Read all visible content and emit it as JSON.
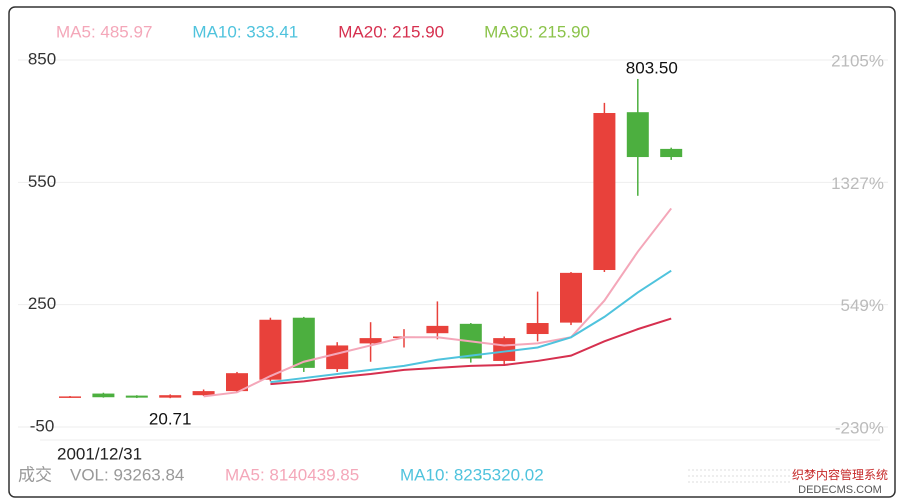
{
  "chart_data": {
    "type": "candlestick",
    "categories": [
      "2001/12/31",
      null,
      null,
      null,
      null,
      null,
      null,
      null,
      null,
      null,
      null,
      null,
      null,
      null,
      null,
      null,
      null,
      null,
      null
    ],
    "open": [
      22,
      32,
      27,
      22,
      28,
      38,
      66,
      218,
      92,
      155,
      170,
      180,
      203,
      112,
      178,
      206,
      335,
      722,
      632
    ],
    "high": [
      26,
      34,
      28,
      30,
      42,
      85,
      218,
      220,
      158,
      207,
      190,
      258,
      205,
      172,
      282,
      330,
      745,
      803.5,
      635
    ],
    "low": [
      21.5,
      22,
      21,
      20.71,
      26,
      35,
      62,
      85,
      85,
      110,
      145,
      165,
      108,
      100,
      160,
      200,
      330,
      517,
      605
    ],
    "close": [
      25,
      23,
      22,
      28,
      38,
      82,
      213,
      95,
      150,
      168,
      172,
      198,
      118,
      168,
      205,
      328,
      720,
      612,
      612
    ],
    "up_color": "#e8413b",
    "down_color": "#4caf3f",
    "series": [
      {
        "name": "MA5: 485.97",
        "color": "#f4a7b9",
        "values": [
          null,
          null,
          null,
          null,
          25,
          35,
          75,
          110,
          130,
          150,
          170,
          170,
          160,
          150,
          155,
          170,
          260,
          380,
          485.97
        ]
      },
      {
        "name": "MA10: 333.41",
        "color": "#4fc3dd",
        "values": [
          null,
          null,
          null,
          null,
          null,
          null,
          60,
          70,
          80,
          90,
          100,
          115,
          125,
          135,
          145,
          170,
          220,
          280,
          333.41
        ]
      },
      {
        "name": "MA20: 215.90",
        "color": "#d6304f",
        "values": [
          null,
          null,
          null,
          null,
          null,
          null,
          55,
          62,
          72,
          80,
          90,
          95,
          100,
          102,
          112,
          125,
          160,
          190,
          215.9
        ]
      }
    ],
    "extra_legend": [
      {
        "name": "MA30: 215.90",
        "color": "#8bc34a"
      }
    ],
    "annotations": [
      {
        "value": 803.5,
        "label": "803.50"
      },
      {
        "value": 20.71,
        "label": "20.71"
      }
    ],
    "ylim": [
      -50,
      850
    ],
    "yticks": [
      -50,
      250,
      550,
      850
    ],
    "y2lim": [
      -230,
      2105
    ],
    "y2ticks": [
      {
        "value": -230,
        "label": "-230%"
      },
      {
        "value": 549,
        "label": "549%"
      },
      {
        "value": 1327,
        "label": "1327%"
      },
      {
        "value": 2105,
        "label": "2105%"
      }
    ],
    "grid": true,
    "footer": {
      "label": "成交",
      "vol": "VOL: 93263.84",
      "ma5": "MA5: 8140439.85",
      "ma10": "MA10: 8235320.02"
    },
    "watermark": [
      "织梦内容管理系统",
      "DEDECMS.COM"
    ]
  }
}
